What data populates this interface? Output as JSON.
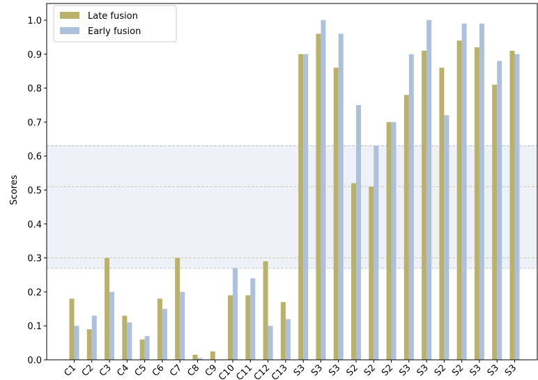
{
  "chart_data": {
    "type": "bar",
    "ylabel": "Scores",
    "categories": [
      "C1",
      "C2",
      "C3",
      "C4",
      "C5",
      "C6",
      "C7",
      "C8",
      "C9",
      "C10",
      "C11",
      "C12",
      "C13",
      "S3",
      "S3",
      "S3",
      "S2",
      "S2",
      "S2",
      "S3",
      "S3",
      "S2",
      "S2",
      "S3",
      "S3",
      "S3"
    ],
    "series": [
      {
        "name": "Late fusion",
        "color": "#bab26a",
        "band": [
          0.3,
          0.51
        ],
        "band_color": "#e3e4d5",
        "values": [
          0.18,
          0.09,
          0.3,
          0.13,
          0.06,
          0.18,
          0.3,
          0.015,
          0.025,
          0.19,
          0.19,
          0.29,
          0.17,
          0.9,
          0.96,
          0.86,
          0.52,
          0.51,
          0.7,
          0.78,
          0.91,
          0.86,
          0.94,
          0.92,
          0.81,
          0.91
        ]
      },
      {
        "name": "Early fusion",
        "color": "#adc0dc",
        "band": [
          0.27,
          0.63
        ],
        "band_color": "#eef1f8",
        "values": [
          0.1,
          0.13,
          0.2,
          0.11,
          0.07,
          0.15,
          0.2,
          0.005,
          0,
          0.27,
          0.24,
          0.1,
          0.12,
          0.9,
          1.0,
          0.96,
          0.75,
          0.63,
          0.7,
          0.9,
          1.0,
          0.72,
          0.99,
          0.99,
          0.88,
          0.9
        ]
      }
    ],
    "ylim": [
      0,
      1.0
    ],
    "yticks": [
      {
        "value": 0,
        "label": "0.0"
      },
      0.1,
      0.2,
      0.3,
      0.4,
      0.5,
      0.6,
      0.7,
      0.8,
      0.9,
      {
        "value": 1,
        "label": "1.0"
      }
    ],
    "legend": "upper left"
  }
}
